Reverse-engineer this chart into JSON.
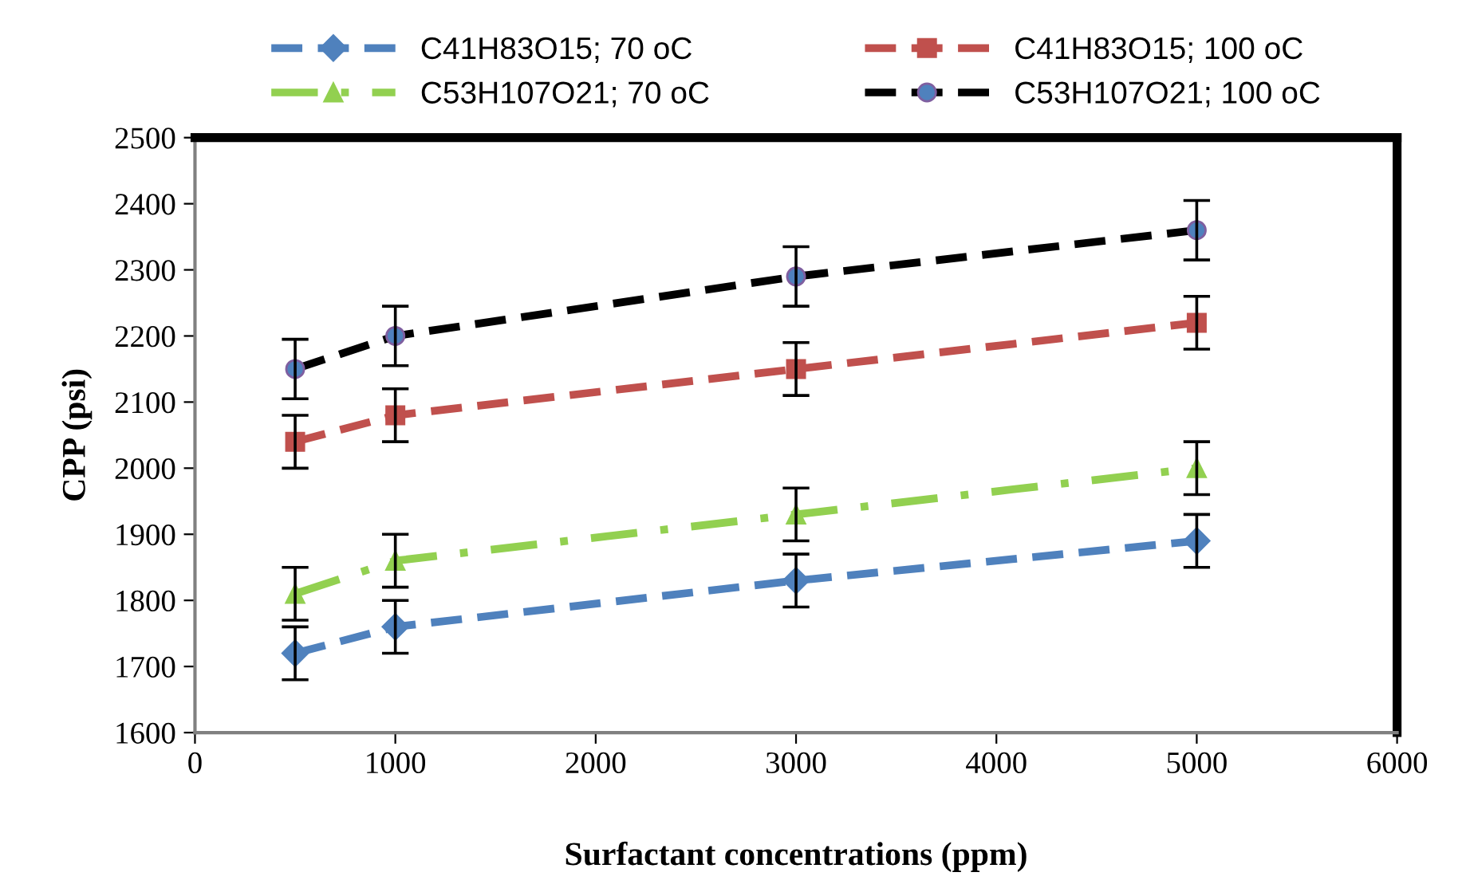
{
  "chart_data": {
    "type": "line",
    "xlabel": "Surfactant concentrations (ppm)",
    "ylabel": "CPP (psi)",
    "xlim": [
      0,
      6000
    ],
    "xticks": [
      0,
      1000,
      2000,
      3000,
      4000,
      5000,
      6000
    ],
    "ylim": [
      1600,
      2500
    ],
    "yticks": [
      1600,
      1700,
      1800,
      1900,
      2000,
      2100,
      2200,
      2300,
      2400,
      2500
    ],
    "grid": false,
    "legend": "top",
    "x": [
      500,
      1000,
      3000,
      5000
    ],
    "series": [
      {
        "name": "C41H83O15; 70 oC",
        "color": "#4f81bd",
        "marker": "diamond",
        "line_style": "dashed",
        "values": [
          1720,
          1760,
          1830,
          1890
        ],
        "errors": [
          40,
          40,
          40,
          40
        ]
      },
      {
        "name": "C41H83O15; 100 oC",
        "color": "#c0504d",
        "marker": "square",
        "line_style": "dashed",
        "values": [
          2040,
          2080,
          2150,
          2220
        ],
        "errors": [
          40,
          40,
          40,
          40
        ]
      },
      {
        "name": "C53H107O21; 70 oC",
        "color": "#92d050",
        "marker": "triangle",
        "line_style": "dashdot",
        "values": [
          1810,
          1860,
          1930,
          2000
        ],
        "errors": [
          40,
          40,
          40,
          40
        ]
      },
      {
        "name": "C53H107O21; 100 oC",
        "color": "#000000",
        "marker": "circle",
        "line_style": "dashed",
        "values": [
          2150,
          2200,
          2290,
          2360
        ],
        "errors": [
          45,
          45,
          45,
          45
        ]
      }
    ]
  }
}
